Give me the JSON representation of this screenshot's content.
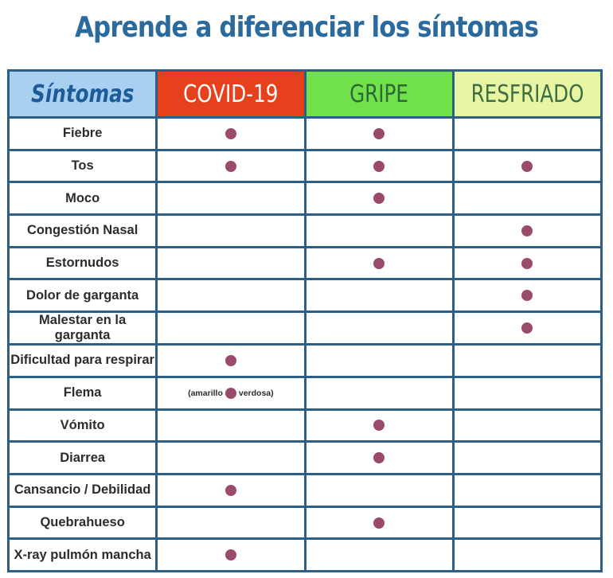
{
  "title": "Aprende a diferenciar los síntomas",
  "table": {
    "header": [
      "Síntomas",
      "COVID-19",
      "GRIPE",
      "RESFRIADO"
    ],
    "rows": [
      {
        "label": "Fiebre",
        "marks": [
          true,
          true,
          false
        ]
      },
      {
        "label": "Tos",
        "marks": [
          true,
          true,
          true
        ]
      },
      {
        "label": "Moco",
        "marks": [
          false,
          true,
          false
        ]
      },
      {
        "label": "Congestión Nasal",
        "marks": [
          false,
          false,
          true
        ]
      },
      {
        "label": "Estornudos",
        "marks": [
          false,
          true,
          true
        ]
      },
      {
        "label": "Dolor de garganta",
        "marks": [
          false,
          false,
          true
        ]
      },
      {
        "label": "Malestar en la garganta",
        "marks": [
          false,
          false,
          true
        ]
      },
      {
        "label": "Dificultad para respirar",
        "marks": [
          true,
          false,
          false
        ]
      },
      {
        "label": "Flema",
        "marks": [
          {
            "before": "(amarillo",
            "after": "verdosa)"
          },
          false,
          false
        ]
      },
      {
        "label": "Vómito",
        "marks": [
          false,
          true,
          false
        ]
      },
      {
        "label": "Diarrea",
        "marks": [
          false,
          true,
          false
        ]
      },
      {
        "label": "Cansancio / Debilidad",
        "marks": [
          true,
          false,
          false
        ]
      },
      {
        "label": "Quebrahueso",
        "marks": [
          false,
          true,
          false
        ]
      },
      {
        "label": "X-ray pulmón mancha",
        "marks": [
          true,
          false,
          false
        ]
      }
    ]
  }
}
